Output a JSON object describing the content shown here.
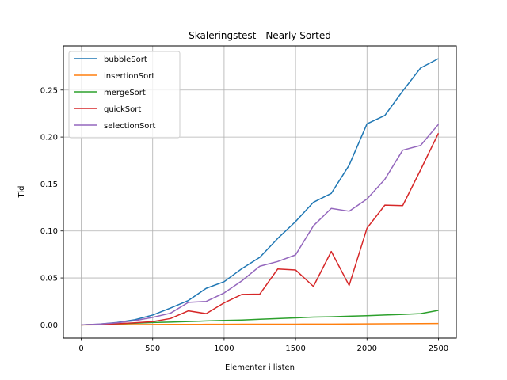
{
  "chart_data": {
    "type": "line",
    "title": "Skaleringstest - Nearly Sorted",
    "xlabel": "Elementer i listen",
    "ylabel": "Tid",
    "xlim": [
      -125,
      2625
    ],
    "ylim": [
      -0.014,
      0.297
    ],
    "xticks": [
      0,
      500,
      1000,
      1500,
      2000,
      2500
    ],
    "yticks": [
      0.0,
      0.05,
      0.1,
      0.15,
      0.2,
      0.25
    ],
    "xtick_labels": [
      "0",
      "500",
      "1000",
      "1500",
      "2000",
      "2500"
    ],
    "ytick_labels": [
      "0.00",
      "0.05",
      "0.10",
      "0.15",
      "0.20",
      "0.25"
    ],
    "grid": true,
    "legend_position": "top-left",
    "x": [
      0,
      125,
      250,
      375,
      500,
      625,
      750,
      875,
      1000,
      1125,
      1250,
      1375,
      1500,
      1625,
      1750,
      1875,
      2000,
      2125,
      2250,
      2375,
      2500
    ],
    "series": [
      {
        "name": "bubbleSort",
        "color": "#1f77b4",
        "values": [
          0.0,
          0.0008,
          0.0025,
          0.0055,
          0.0105,
          0.018,
          0.026,
          0.039,
          0.046,
          0.06,
          0.072,
          0.092,
          0.11,
          0.1305,
          0.14,
          0.17,
          0.214,
          0.223,
          0.249,
          0.2735,
          0.2835
        ]
      },
      {
        "name": "insertionSort",
        "color": "#ff7f0e",
        "values": [
          0.0,
          0.0001,
          0.0002,
          0.0003,
          0.0004,
          0.0005,
          0.0005,
          0.0006,
          0.0006,
          0.0007,
          0.0007,
          0.0008,
          0.0008,
          0.0009,
          0.0009,
          0.001,
          0.0011,
          0.0012,
          0.0013,
          0.0014,
          0.0015
        ]
      },
      {
        "name": "mergeSort",
        "color": "#2ca02c",
        "values": [
          0.0,
          0.0006,
          0.0012,
          0.0018,
          0.0025,
          0.003,
          0.0036,
          0.0042,
          0.0048,
          0.0052,
          0.006,
          0.0068,
          0.0075,
          0.0083,
          0.0087,
          0.0093,
          0.0098,
          0.0105,
          0.0112,
          0.012,
          0.0155
        ]
      },
      {
        "name": "quickSort",
        "color": "#d62728",
        "values": [
          0.0,
          0.0005,
          0.0012,
          0.0022,
          0.0035,
          0.0068,
          0.015,
          0.012,
          0.0235,
          0.0325,
          0.0328,
          0.0595,
          0.0585,
          0.041,
          0.0782,
          0.042,
          0.103,
          0.1275,
          0.127,
          0.165,
          0.204
        ]
      },
      {
        "name": "selectionSort",
        "color": "#9467bd",
        "values": [
          0.0,
          0.0009,
          0.0022,
          0.0045,
          0.008,
          0.0125,
          0.024,
          0.025,
          0.034,
          0.047,
          0.0625,
          0.0675,
          0.0745,
          0.1055,
          0.124,
          0.121,
          0.134,
          0.155,
          0.186,
          0.191,
          0.2135
        ]
      }
    ]
  }
}
